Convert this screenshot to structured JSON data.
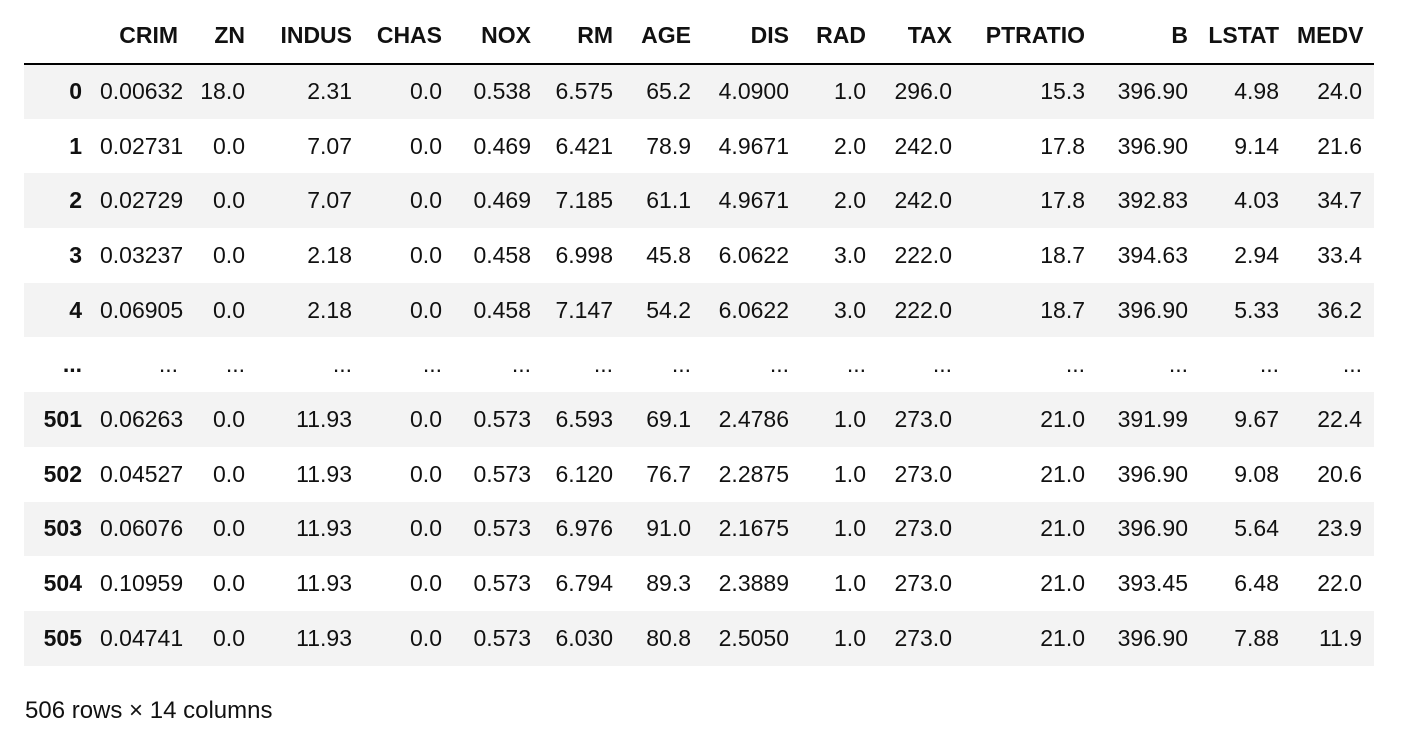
{
  "dataframe": {
    "columns": [
      "CRIM",
      "ZN",
      "INDUS",
      "CHAS",
      "NOX",
      "RM",
      "AGE",
      "DIS",
      "RAD",
      "TAX",
      "PTRATIO",
      "B",
      "LSTAT",
      "MEDV"
    ],
    "rows": [
      {
        "index": "0",
        "cells": [
          "0.00632",
          "18.0",
          "2.31",
          "0.0",
          "0.538",
          "6.575",
          "65.2",
          "4.0900",
          "1.0",
          "296.0",
          "15.3",
          "396.90",
          "4.98",
          "24.0"
        ]
      },
      {
        "index": "1",
        "cells": [
          "0.02731",
          "0.0",
          "7.07",
          "0.0",
          "0.469",
          "6.421",
          "78.9",
          "4.9671",
          "2.0",
          "242.0",
          "17.8",
          "396.90",
          "9.14",
          "21.6"
        ]
      },
      {
        "index": "2",
        "cells": [
          "0.02729",
          "0.0",
          "7.07",
          "0.0",
          "0.469",
          "7.185",
          "61.1",
          "4.9671",
          "2.0",
          "242.0",
          "17.8",
          "392.83",
          "4.03",
          "34.7"
        ]
      },
      {
        "index": "3",
        "cells": [
          "0.03237",
          "0.0",
          "2.18",
          "0.0",
          "0.458",
          "6.998",
          "45.8",
          "6.0622",
          "3.0",
          "222.0",
          "18.7",
          "394.63",
          "2.94",
          "33.4"
        ]
      },
      {
        "index": "4",
        "cells": [
          "0.06905",
          "0.0",
          "2.18",
          "0.0",
          "0.458",
          "7.147",
          "54.2",
          "6.0622",
          "3.0",
          "222.0",
          "18.7",
          "396.90",
          "5.33",
          "36.2"
        ]
      },
      {
        "index": "...",
        "cells": [
          "...",
          "...",
          "...",
          "...",
          "...",
          "...",
          "...",
          "...",
          "...",
          "...",
          "...",
          "...",
          "...",
          "..."
        ]
      },
      {
        "index": "501",
        "cells": [
          "0.06263",
          "0.0",
          "11.93",
          "0.0",
          "0.573",
          "6.593",
          "69.1",
          "2.4786",
          "1.0",
          "273.0",
          "21.0",
          "391.99",
          "9.67",
          "22.4"
        ]
      },
      {
        "index": "502",
        "cells": [
          "0.04527",
          "0.0",
          "11.93",
          "0.0",
          "0.573",
          "6.120",
          "76.7",
          "2.2875",
          "1.0",
          "273.0",
          "21.0",
          "396.90",
          "9.08",
          "20.6"
        ]
      },
      {
        "index": "503",
        "cells": [
          "0.06076",
          "0.0",
          "11.93",
          "0.0",
          "0.573",
          "6.976",
          "91.0",
          "2.1675",
          "1.0",
          "273.0",
          "21.0",
          "396.90",
          "5.64",
          "23.9"
        ]
      },
      {
        "index": "504",
        "cells": [
          "0.10959",
          "0.0",
          "11.93",
          "0.0",
          "0.573",
          "6.794",
          "89.3",
          "2.3889",
          "1.0",
          "273.0",
          "21.0",
          "393.45",
          "6.48",
          "22.0"
        ]
      },
      {
        "index": "505",
        "cells": [
          "0.04741",
          "0.0",
          "11.93",
          "0.0",
          "0.573",
          "6.030",
          "80.8",
          "2.5050",
          "1.0",
          "273.0",
          "21.0",
          "396.90",
          "7.88",
          "11.9"
        ]
      }
    ],
    "shape_text": "506 rows × 14 columns"
  }
}
